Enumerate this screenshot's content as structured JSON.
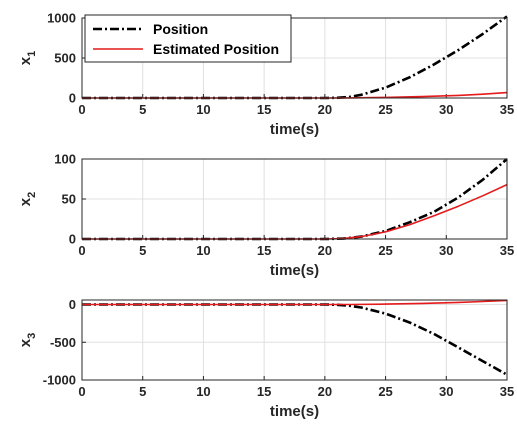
{
  "chart_data": [
    {
      "type": "line",
      "xlabel": "time(s)",
      "ylabel": "x",
      "ylabel_sub": "1",
      "xlim": [
        0,
        35
      ],
      "ylim": [
        0,
        1000
      ],
      "xticks": [
        "0",
        "5",
        "10",
        "15",
        "20",
        "25",
        "30",
        "35"
      ],
      "yticks": [
        "0",
        "500",
        "1000"
      ],
      "ytick_values": [
        0,
        500,
        1000
      ],
      "grid": true,
      "legend": {
        "placement": "top-left",
        "entries": [
          "Position",
          "Estimated Position"
        ]
      },
      "series": [
        {
          "name": "Position",
          "color": "#000000",
          "style": "dash-dot",
          "x": [
            0,
            5,
            10,
            15,
            20,
            21,
            22,
            23,
            25,
            27,
            29,
            31,
            33,
            35
          ],
          "y": [
            0,
            0,
            0,
            0,
            0,
            2,
            12,
            40,
            130,
            260,
            420,
            600,
            800,
            1020
          ]
        },
        {
          "name": "Estimated Position",
          "color": "#e41a1c",
          "style": "solid",
          "x": [
            0,
            5,
            10,
            15,
            20,
            22,
            25,
            28,
            31,
            33,
            35
          ],
          "y": [
            0,
            0,
            0,
            0,
            0,
            1,
            8,
            18,
            33,
            48,
            68
          ]
        }
      ]
    },
    {
      "type": "line",
      "xlabel": "time(s)",
      "ylabel": "x",
      "ylabel_sub": "2",
      "xlim": [
        0,
        35
      ],
      "ylim": [
        0,
        100
      ],
      "xticks": [
        "0",
        "5",
        "10",
        "15",
        "20",
        "25",
        "30",
        "35"
      ],
      "yticks": [
        "0",
        "50",
        "100"
      ],
      "ytick_values": [
        0,
        50,
        100
      ],
      "grid": true,
      "series": [
        {
          "name": "Position",
          "color": "#000000",
          "style": "dash-dot",
          "x": [
            0,
            5,
            10,
            15,
            20,
            21.5,
            23,
            25,
            27,
            29,
            31,
            33,
            35
          ],
          "y": [
            0,
            0,
            0,
            0,
            0,
            0.5,
            3,
            10,
            21,
            34,
            52,
            74,
            100
          ]
        },
        {
          "name": "Estimated Position",
          "color": "#e41a1c",
          "style": "solid",
          "x": [
            0,
            5,
            10,
            15,
            20,
            21.5,
            23,
            25,
            27,
            29,
            31,
            33,
            35
          ],
          "y": [
            0,
            0,
            0,
            0,
            0,
            0.5,
            3,
            9,
            18,
            29,
            41,
            54,
            68
          ]
        }
      ]
    },
    {
      "type": "line",
      "xlabel": "time(s)",
      "ylabel": "x",
      "ylabel_sub": "3",
      "xlim": [
        0,
        35
      ],
      "ylim": [
        -1000,
        60
      ],
      "xticks": [
        "0",
        "5",
        "10",
        "15",
        "20",
        "25",
        "30",
        "35"
      ],
      "yticks": [
        "0",
        "-500",
        "-1000"
      ],
      "ytick_values": [
        0,
        -500,
        -1000
      ],
      "grid": true,
      "series": [
        {
          "name": "Position",
          "color": "#000000",
          "style": "dash-dot",
          "x": [
            0,
            5,
            10,
            15,
            20,
            21,
            22,
            23,
            25,
            27,
            29,
            31,
            33,
            35
          ],
          "y": [
            0,
            0,
            0,
            0,
            0,
            -3,
            -15,
            -40,
            -120,
            -240,
            -390,
            -570,
            -750,
            -930
          ]
        },
        {
          "name": "Estimated Position",
          "color": "#e41a1c",
          "style": "solid",
          "x": [
            0,
            5,
            10,
            15,
            20,
            22,
            25,
            28,
            31,
            33,
            35
          ],
          "y": [
            0,
            0,
            0,
            0,
            0,
            1,
            6,
            15,
            28,
            40,
            55
          ]
        }
      ]
    }
  ]
}
